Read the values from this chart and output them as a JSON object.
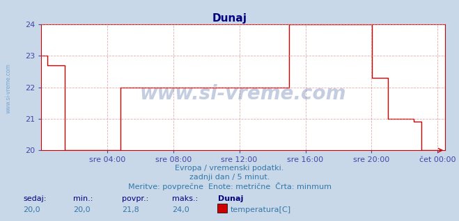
{
  "title": "Dunaj",
  "title_color": "#000080",
  "bg_color": "#c8d8e8",
  "plot_bg_color": "#ffffff",
  "line_color": "#cc0000",
  "line_width": 1.0,
  "ylim": [
    20,
    24
  ],
  "yticks": [
    20,
    21,
    22,
    23,
    24
  ],
  "ylabel_color": "#4444aa",
  "xlabel_color": "#4444aa",
  "grid_color": "#dd8888",
  "grid_linestyle": "--",
  "grid_alpha": 0.7,
  "xtick_labels": [
    "sre 04:00",
    "sre 08:00",
    "sre 12:00",
    "sre 16:00",
    "sre 20:00",
    "čet 00:00"
  ],
  "xtick_positions": [
    0.167,
    0.333,
    0.5,
    0.667,
    0.833,
    1.0
  ],
  "watermark_text": "www.si-vreme.com",
  "watermark_color": "#1a3a8a",
  "watermark_alpha": 0.25,
  "left_label": "www.si-vreme.com",
  "left_label_color": "#6699cc",
  "subtitle1": "Evropa / vremenski podatki.",
  "subtitle2": "zadnji dan / 5 minut.",
  "subtitle3": "Meritve: povprečne  Enote: metrične  Črta: minmum",
  "subtitle_color": "#3377aa",
  "legend_labels": [
    "sedaj:",
    "min.:",
    "povpr.:",
    "maks.:",
    "Dunaj"
  ],
  "legend_values": [
    "20,0",
    "20,0",
    "21,8",
    "24,0"
  ],
  "legend_series": "temperatura[C]",
  "legend_color": "#3377aa",
  "legend_bold_color": "#000080",
  "swatch_color": "#cc0000",
  "x_data": [
    0,
    0.015,
    0.015,
    0.06,
    0.06,
    0.2,
    0.2,
    0.625,
    0.625,
    0.835,
    0.835,
    0.875,
    0.875,
    0.94,
    0.94,
    0.96,
    0.96,
    1.0
  ],
  "y_data": [
    23,
    23,
    22.7,
    22.7,
    20,
    20,
    22,
    22,
    24,
    24,
    22.3,
    22.3,
    21,
    21,
    20.9,
    20.9,
    20,
    20
  ],
  "arrow_color": "#cc0000",
  "spine_color": "#cc0000"
}
